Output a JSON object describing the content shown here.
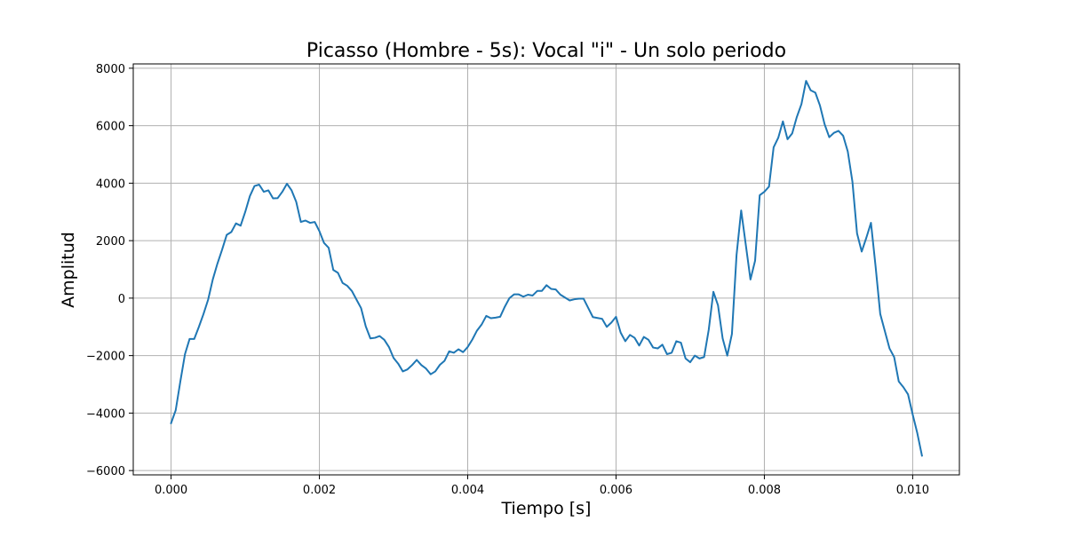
{
  "chart_data": {
    "type": "line",
    "title": "Picasso (Hombre - 5s): Vocal \"i\" - Un solo periodo",
    "xlabel": "Tiempo [s]",
    "ylabel": "Amplitud",
    "xlim": [
      -0.00051,
      0.01063
    ],
    "ylim": [
      -6150,
      8150
    ],
    "xticks": [
      0.0,
      0.002,
      0.004,
      0.006,
      0.008,
      0.01
    ],
    "xtick_labels": [
      "0.000",
      "0.002",
      "0.004",
      "0.006",
      "0.008",
      "0.010"
    ],
    "yticks": [
      -6000,
      -4000,
      -2000,
      0,
      2000,
      4000,
      6000,
      8000
    ],
    "ytick_labels": [
      "−6000",
      "−4000",
      "−2000",
      "0",
      "2000",
      "4000",
      "6000",
      "8000"
    ],
    "grid": true,
    "line_color": "#1f77b4",
    "series": [
      {
        "x": [
          0.0,
          6.25e-05,
          0.000125,
          0.0001875,
          0.00025,
          0.0003125,
          0.000375,
          0.0004375,
          0.0005,
          0.0005625,
          0.000625,
          0.0006875,
          0.00075,
          0.0008125,
          0.000875,
          0.0009375,
          0.001,
          0.0010625,
          0.001125,
          0.0011875,
          0.00125,
          0.0013125,
          0.001375,
          0.0014375,
          0.0015,
          0.0015625,
          0.001625,
          0.0016875,
          0.00175,
          0.0018125,
          0.001875,
          0.0019375,
          0.002,
          0.0020625,
          0.002125,
          0.0021875,
          0.00225,
          0.0023125,
          0.002375,
          0.0024375,
          0.0025,
          0.0025625,
          0.002625,
          0.0026875,
          0.00275,
          0.0028125,
          0.002875,
          0.0029375,
          0.003,
          0.0030625,
          0.003125,
          0.0031875,
          0.00325,
          0.0033125,
          0.003375,
          0.0034375,
          0.0035,
          0.0035625,
          0.003625,
          0.0036875,
          0.00375,
          0.0038125,
          0.003875,
          0.0039375,
          0.004,
          0.0040625,
          0.004125,
          0.0041875,
          0.00425,
          0.0043125,
          0.004375,
          0.0044375,
          0.0045,
          0.0045625,
          0.004625,
          0.0046875,
          0.00475,
          0.0048125,
          0.004875,
          0.0049375,
          0.005,
          0.0050625,
          0.005125,
          0.0051875,
          0.00525,
          0.0053125,
          0.005375,
          0.0054375,
          0.0055,
          0.0055625,
          0.005625,
          0.0056875,
          0.00575,
          0.0058125,
          0.005875,
          0.0059375,
          0.006,
          0.0060625,
          0.006125,
          0.0061875,
          0.00625,
          0.0063125,
          0.006375,
          0.0064375,
          0.0065,
          0.0065625,
          0.006625,
          0.0066875,
          0.00675,
          0.0068125,
          0.006875,
          0.0069375,
          0.007,
          0.0070625,
          0.007125,
          0.0071875,
          0.00725,
          0.0073125,
          0.007375,
          0.0074375,
          0.0075,
          0.0075625,
          0.007625,
          0.0076875,
          0.00775,
          0.0078125,
          0.007875,
          0.0079375,
          0.008,
          0.0080625,
          0.008125,
          0.0081875,
          0.00825,
          0.0083125,
          0.008375,
          0.0084375,
          0.0085,
          0.0085625,
          0.008625,
          0.0086875,
          0.00875,
          0.0088125,
          0.008875,
          0.0089375,
          0.009,
          0.0090625,
          0.009125,
          0.0091875,
          0.00925,
          0.0093125,
          0.009375,
          0.0094375,
          0.0095,
          0.0095625,
          0.009625,
          0.0096875,
          0.00975,
          0.0098125,
          0.009875,
          0.0099375,
          0.01,
          0.0100625,
          0.010125
        ],
        "y": [
          -4350,
          -3900,
          -2900,
          -1950,
          -1420,
          -1420,
          -1000,
          -550,
          -50,
          650,
          1200,
          1680,
          2200,
          2300,
          2600,
          2520,
          3000,
          3550,
          3900,
          3950,
          3700,
          3750,
          3470,
          3480,
          3700,
          3980,
          3750,
          3350,
          2650,
          2700,
          2620,
          2650,
          2330,
          1920,
          1750,
          980,
          880,
          530,
          430,
          250,
          -50,
          -350,
          -980,
          -1400,
          -1380,
          -1320,
          -1450,
          -1700,
          -2080,
          -2280,
          -2550,
          -2480,
          -2330,
          -2150,
          -2330,
          -2450,
          -2650,
          -2550,
          -2320,
          -2180,
          -1850,
          -1900,
          -1780,
          -1880,
          -1700,
          -1440,
          -1130,
          -920,
          -620,
          -700,
          -680,
          -650,
          -300,
          0,
          130,
          130,
          50,
          120,
          90,
          250,
          250,
          450,
          320,
          300,
          120,
          20,
          -80,
          -40,
          -20,
          -20,
          -340,
          -660,
          -690,
          -720,
          -1000,
          -850,
          -650,
          -1200,
          -1500,
          -1280,
          -1380,
          -1650,
          -1350,
          -1450,
          -1720,
          -1750,
          -1620,
          -1950,
          -1900,
          -1500,
          -1550,
          -2100,
          -2230,
          -2000,
          -2100,
          -2050,
          -1100,
          220,
          -250,
          -1400,
          -2000,
          -1250,
          1500,
          3050,
          1850,
          650,
          1300,
          3580,
          3700,
          3880,
          5250,
          5580,
          6150,
          5530,
          5730,
          6300,
          6750,
          7560,
          7230,
          7150,
          6700,
          6050,
          5600,
          5750,
          5820,
          5650,
          5100,
          4050,
          2250,
          1620,
          2100,
          2620,
          1100,
          -550,
          -1150,
          -1750,
          -2050,
          -2900,
          -3100,
          -3350,
          -4050,
          -4700,
          -5480
        ]
      }
    ]
  }
}
